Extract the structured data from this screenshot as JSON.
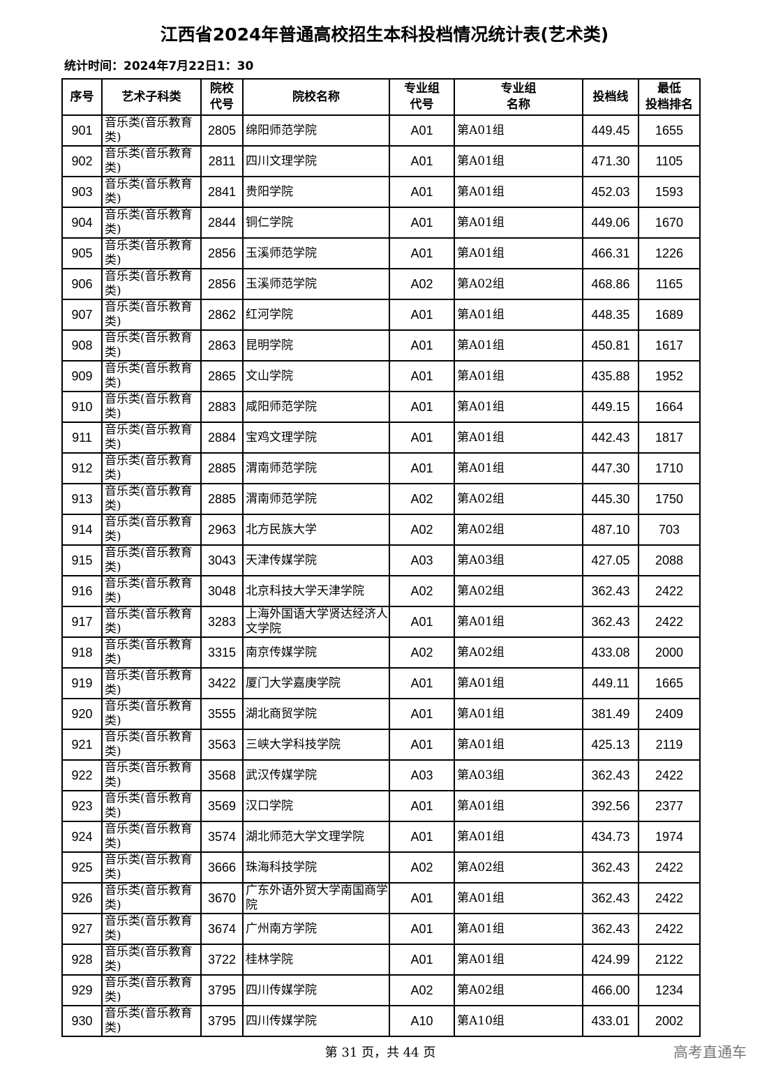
{
  "title": "江西省2024年普通高校招生本科投档情况统计表(艺术类)",
  "stat_time": "统计时间：2024年7月22日1：30",
  "headers": [
    "序号",
    "艺术子科类",
    "院校\n代号",
    "院校名称",
    "专业组\n代号",
    "专业组\n名称",
    "投档线",
    "最低\n投档排名"
  ],
  "rows": [
    [
      "901",
      "音乐类(音乐教育类)",
      "2805",
      "绵阳师范学院",
      "A01",
      "第A01组",
      "449.45",
      "1655"
    ],
    [
      "902",
      "音乐类(音乐教育类)",
      "2811",
      "四川文理学院",
      "A01",
      "第A01组",
      "471.30",
      "1105"
    ],
    [
      "903",
      "音乐类(音乐教育类)",
      "2841",
      "贵阳学院",
      "A01",
      "第A01组",
      "452.03",
      "1593"
    ],
    [
      "904",
      "音乐类(音乐教育类)",
      "2844",
      "铜仁学院",
      "A01",
      "第A01组",
      "449.06",
      "1670"
    ],
    [
      "905",
      "音乐类(音乐教育类)",
      "2856",
      "玉溪师范学院",
      "A01",
      "第A01组",
      "466.31",
      "1226"
    ],
    [
      "906",
      "音乐类(音乐教育类)",
      "2856",
      "玉溪师范学院",
      "A02",
      "第A02组",
      "468.86",
      "1165"
    ],
    [
      "907",
      "音乐类(音乐教育类)",
      "2862",
      "红河学院",
      "A01",
      "第A01组",
      "448.35",
      "1689"
    ],
    [
      "908",
      "音乐类(音乐教育类)",
      "2863",
      "昆明学院",
      "A01",
      "第A01组",
      "450.81",
      "1617"
    ],
    [
      "909",
      "音乐类(音乐教育类)",
      "2865",
      "文山学院",
      "A01",
      "第A01组",
      "435.88",
      "1952"
    ],
    [
      "910",
      "音乐类(音乐教育类)",
      "2883",
      "咸阳师范学院",
      "A01",
      "第A01组",
      "449.15",
      "1664"
    ],
    [
      "911",
      "音乐类(音乐教育类)",
      "2884",
      "宝鸡文理学院",
      "A01",
      "第A01组",
      "442.43",
      "1817"
    ],
    [
      "912",
      "音乐类(音乐教育类)",
      "2885",
      "渭南师范学院",
      "A01",
      "第A01组",
      "447.30",
      "1710"
    ],
    [
      "913",
      "音乐类(音乐教育类)",
      "2885",
      "渭南师范学院",
      "A02",
      "第A02组",
      "445.30",
      "1750"
    ],
    [
      "914",
      "音乐类(音乐教育类)",
      "2963",
      "北方民族大学",
      "A02",
      "第A02组",
      "487.10",
      "703"
    ],
    [
      "915",
      "音乐类(音乐教育类)",
      "3043",
      "天津传媒学院",
      "A03",
      "第A03组",
      "427.05",
      "2088"
    ],
    [
      "916",
      "音乐类(音乐教育类)",
      "3048",
      "北京科技大学天津学院",
      "A02",
      "第A02组",
      "362.43",
      "2422"
    ],
    [
      "917",
      "音乐类(音乐教育类)",
      "3283",
      "上海外国语大学贤达经济人文学院",
      "A01",
      "第A01组",
      "362.43",
      "2422"
    ],
    [
      "918",
      "音乐类(音乐教育类)",
      "3315",
      "南京传媒学院",
      "A02",
      "第A02组",
      "433.08",
      "2000"
    ],
    [
      "919",
      "音乐类(音乐教育类)",
      "3422",
      "厦门大学嘉庚学院",
      "A01",
      "第A01组",
      "449.11",
      "1665"
    ],
    [
      "920",
      "音乐类(音乐教育类)",
      "3555",
      "湖北商贸学院",
      "A01",
      "第A01组",
      "381.49",
      "2409"
    ],
    [
      "921",
      "音乐类(音乐教育类)",
      "3563",
      "三峡大学科技学院",
      "A01",
      "第A01组",
      "425.13",
      "2119"
    ],
    [
      "922",
      "音乐类(音乐教育类)",
      "3568",
      "武汉传媒学院",
      "A03",
      "第A03组",
      "362.43",
      "2422"
    ],
    [
      "923",
      "音乐类(音乐教育类)",
      "3569",
      "汉口学院",
      "A01",
      "第A01组",
      "392.56",
      "2377"
    ],
    [
      "924",
      "音乐类(音乐教育类)",
      "3574",
      "湖北师范大学文理学院",
      "A01",
      "第A01组",
      "434.73",
      "1974"
    ],
    [
      "925",
      "音乐类(音乐教育类)",
      "3666",
      "珠海科技学院",
      "A02",
      "第A02组",
      "362.43",
      "2422"
    ],
    [
      "926",
      "音乐类(音乐教育类)",
      "3670",
      "广东外语外贸大学南国商学院",
      "A01",
      "第A01组",
      "362.43",
      "2422"
    ],
    [
      "927",
      "音乐类(音乐教育类)",
      "3674",
      "广州南方学院",
      "A01",
      "第A01组",
      "362.43",
      "2422"
    ],
    [
      "928",
      "音乐类(音乐教育类)",
      "3722",
      "桂林学院",
      "A01",
      "第A01组",
      "424.99",
      "2122"
    ],
    [
      "929",
      "音乐类(音乐教育类)",
      "3795",
      "四川传媒学院",
      "A02",
      "第A02组",
      "466.00",
      "1234"
    ],
    [
      "930",
      "音乐类(音乐教育类)",
      "3795",
      "四川传媒学院",
      "A10",
      "第A10组",
      "433.01",
      "2002"
    ]
  ],
  "footer": "第 31 页，共 44 页",
  "brand": "高考直通车"
}
